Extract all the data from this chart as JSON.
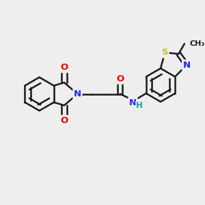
{
  "bg_color": "#eeeeee",
  "bond_color": "#1a1a1a",
  "bond_width": 1.8,
  "atom_colors": {
    "N": "#2020ff",
    "O": "#ee0000",
    "S": "#c8c800",
    "H": "#00aaaa",
    "C": "#1a1a1a"
  },
  "font_size": 9.5,
  "fig_w": 3.0,
  "fig_h": 3.0,
  "dpi": 100
}
